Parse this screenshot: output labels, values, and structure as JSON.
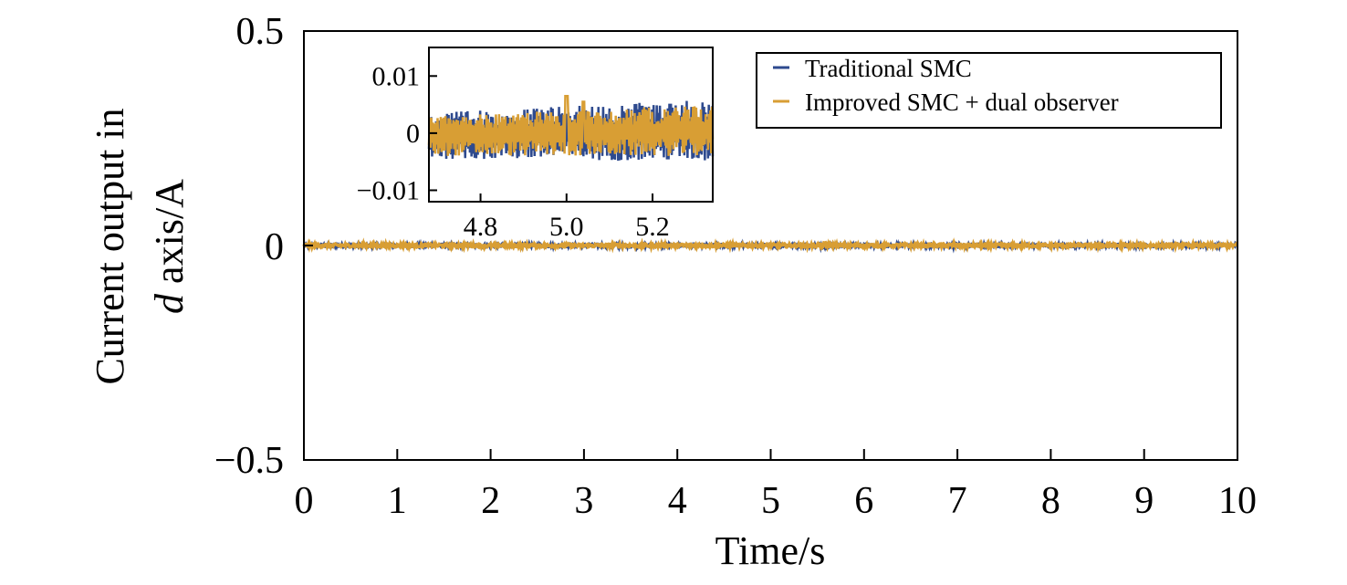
{
  "chart_data": [
    {
      "type": "line",
      "xlabel": "Time/s",
      "ylabel_line1": "Current output in",
      "ylabel_line2_italic": "d",
      "ylabel_line2_rest": " axis/A",
      "xlim": [
        0,
        10
      ],
      "ylim": [
        -0.5,
        0.5
      ],
      "xticks": [
        0,
        1,
        2,
        3,
        4,
        5,
        6,
        7,
        8,
        9,
        10
      ],
      "xtick_labels": [
        "0",
        "1",
        "2",
        "3",
        "4",
        "5",
        "6",
        "7",
        "8",
        "9",
        "10"
      ],
      "yticks": [
        -0.5,
        0,
        0.5
      ],
      "ytick_labels": [
        "−0.5",
        "0",
        "0.5"
      ],
      "legend_position": "top-right",
      "grid": false,
      "series": [
        {
          "name": "Traditional SMC",
          "color": "#2e4a8e",
          "noise_amplitude": 0.004,
          "bumps": [
            {
              "x": 3.3,
              "amp": 0.003
            },
            {
              "x": 5.6,
              "amp": 0.004
            },
            {
              "x": 7.0,
              "amp": 0.003
            },
            {
              "x": 8.5,
              "amp": 0.003
            },
            {
              "x": 10.0,
              "amp": 0.003
            }
          ]
        },
        {
          "name": "Improved SMC + dual observer",
          "color": "#d89e34",
          "noise_amplitude": 0.004,
          "bumps": [
            {
              "x": 5.6,
              "amp": 0.004
            },
            {
              "x": 7.0,
              "amp": 0.003
            },
            {
              "x": 8.6,
              "amp": 0.003
            }
          ]
        }
      ]
    },
    {
      "type": "line",
      "role": "inset",
      "xlim": [
        4.68,
        5.34
      ],
      "ylim": [
        -0.012,
        0.015
      ],
      "xticks": [
        4.8,
        5.0,
        5.2
      ],
      "xtick_labels": [
        "4.8",
        "5.0",
        "5.2"
      ],
      "yticks": [
        -0.01,
        0,
        0.01
      ],
      "ytick_labels": [
        "−0.01",
        "0",
        "0.01"
      ],
      "series": [
        {
          "name": "Traditional SMC",
          "color": "#2e4a8e",
          "envelope_start": [
            -0.0045,
            0.0035
          ],
          "envelope_end": [
            -0.005,
            0.006
          ]
        },
        {
          "name": "Improved SMC + dual observer",
          "color": "#d89e34",
          "envelope_start": [
            -0.004,
            0.003
          ],
          "envelope_end": [
            -0.004,
            0.005
          ],
          "spikes": [
            {
              "x": 5.0,
              "y": 0.0065
            },
            {
              "x": 5.04,
              "y": 0.0055
            }
          ]
        }
      ]
    }
  ]
}
